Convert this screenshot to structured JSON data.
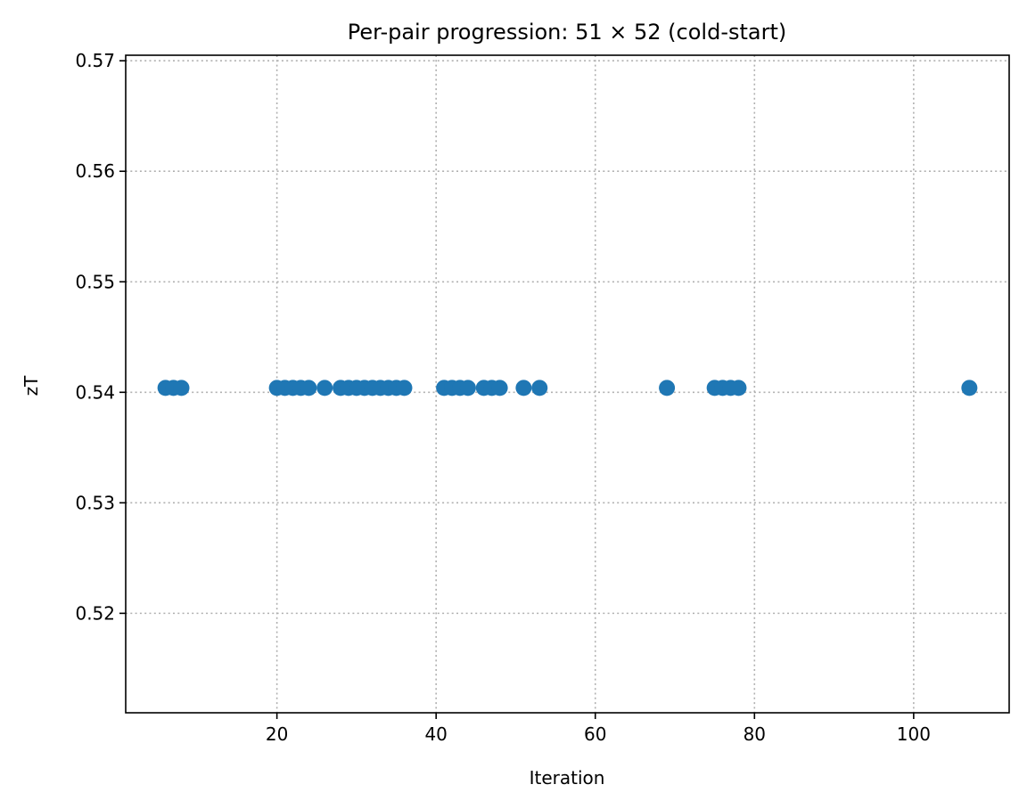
{
  "chart_data": {
    "type": "scatter",
    "title": "Per-pair progression: 51 × 52 (cold-start)",
    "xlabel": "Iteration",
    "ylabel": "zT",
    "xlim": [
      1,
      112
    ],
    "ylim": [
      0.511,
      0.5705
    ],
    "x_ticks": [
      20,
      40,
      60,
      80,
      100
    ],
    "x_tick_labels": [
      "20",
      "40",
      "60",
      "80",
      "100"
    ],
    "y_ticks": [
      0.52,
      0.53,
      0.54,
      0.55,
      0.56,
      0.57
    ],
    "y_tick_labels": [
      "0.52",
      "0.53",
      "0.54",
      "0.55",
      "0.56",
      "0.57"
    ],
    "grid": true,
    "grid_style": "dotted",
    "marker_color": "#1f77b4",
    "series": [
      {
        "name": "zT",
        "x": [
          6,
          7,
          8,
          20,
          21,
          22,
          23,
          24,
          26,
          28,
          29,
          30,
          31,
          32,
          33,
          34,
          35,
          36,
          41,
          42,
          43,
          44,
          46,
          47,
          48,
          51,
          53,
          69,
          75,
          76,
          77,
          78,
          107
        ],
        "y": [
          0.5404,
          0.5404,
          0.5404,
          0.5404,
          0.5404,
          0.5404,
          0.5404,
          0.5404,
          0.5404,
          0.5404,
          0.5404,
          0.5404,
          0.5404,
          0.5404,
          0.5404,
          0.5404,
          0.5404,
          0.5404,
          0.5404,
          0.5404,
          0.5404,
          0.5404,
          0.5404,
          0.5404,
          0.5404,
          0.5404,
          0.5404,
          0.5404,
          0.5404,
          0.5404,
          0.5404,
          0.5404,
          0.5404
        ]
      }
    ]
  }
}
